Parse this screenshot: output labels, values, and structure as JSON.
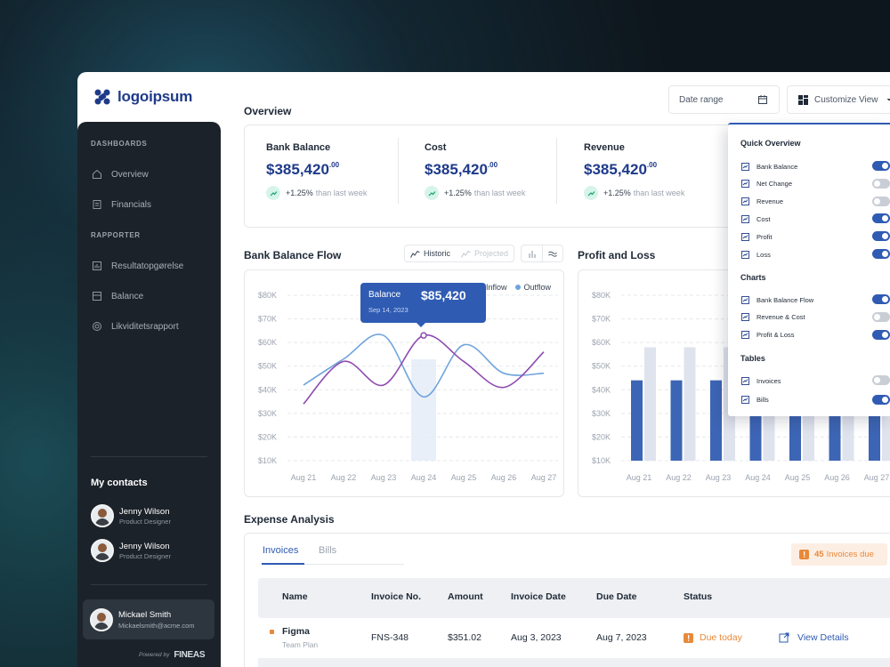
{
  "brand": {
    "name": "logoipsum",
    "powered_label": "Powered by",
    "powered_brand": "FINEAS"
  },
  "sidebar": {
    "section_dashboards": "DASHBOARDS",
    "section_reports": "RAPPORTER",
    "items": [
      {
        "label": "Overview",
        "icon": "home-icon"
      },
      {
        "label": "Financials",
        "icon": "document-icon"
      },
      {
        "label": "Resultatopgørelse",
        "icon": "bar-chart-icon"
      },
      {
        "label": "Balance",
        "icon": "scale-icon"
      },
      {
        "label": "Likviditetsrapport",
        "icon": "coins-icon"
      }
    ],
    "contacts_title": "My contacts",
    "contacts": [
      {
        "name": "Jenny Wilson",
        "role": "Product Designer"
      },
      {
        "name": "Jenny Wilson",
        "role": "Product Designer"
      }
    ],
    "user": {
      "name": "Mickael Smith",
      "email": "Mickaelsmith@acme.com"
    }
  },
  "header": {
    "date_range_label": "Date range",
    "customize_label": "Customize View"
  },
  "overview": {
    "title": "Overview",
    "kpis": [
      {
        "label": "Bank Balance",
        "value": "$385,420",
        "cents": ".00",
        "change": "+1.25%",
        "change_suffix": "than last week"
      },
      {
        "label": "Cost",
        "value": "$385,420",
        "cents": ".00",
        "change": "+1.25%",
        "change_suffix": "than last week"
      },
      {
        "label": "Revenue",
        "value": "$385,420",
        "cents": ".00",
        "change": "+1.25%",
        "change_suffix": "than last week"
      }
    ]
  },
  "bank_flow": {
    "title": "Bank Balance Flow",
    "toggle_historic": "Historic",
    "toggle_projected": "Projected",
    "legend_inflow": "Inflow",
    "legend_outflow": "Outflow",
    "tooltip": {
      "label": "Balance",
      "value": "$85,420",
      "date": "Sep 14, 2023"
    }
  },
  "profit_loss": {
    "title": "Profit and Loss"
  },
  "chart_data": [
    {
      "type": "line",
      "title": "Bank Balance Flow",
      "x": [
        "Aug 21",
        "Aug 22",
        "Aug 23",
        "Aug 24",
        "Aug 25",
        "Aug 26",
        "Aug 27"
      ],
      "y_ticks": [
        "$10K",
        "$20K",
        "$30K",
        "$40K",
        "$50K",
        "$60K",
        "$70K",
        "$80K"
      ],
      "ylim": [
        10000,
        80000
      ],
      "series": [
        {
          "name": "Inflow",
          "color": "#8f4bb0",
          "values": [
            34000,
            52000,
            42000,
            63000,
            52000,
            41000,
            56000
          ]
        },
        {
          "name": "Outflow",
          "color": "#6fa4dc",
          "values": [
            42000,
            53000,
            63000,
            37000,
            59000,
            47000,
            47000
          ]
        }
      ],
      "highlight": {
        "x": "Aug 24",
        "label": "Balance",
        "value": "$85,420",
        "date": "Sep 14, 2023"
      }
    },
    {
      "type": "bar",
      "title": "Profit and Loss",
      "categories": [
        "Aug 21",
        "Aug 22",
        "Aug 23",
        "Aug 24",
        "Aug 25",
        "Aug 26",
        "Aug 27"
      ],
      "y_ticks": [
        "$10K",
        "$20K",
        "$30K",
        "$40K",
        "$50K",
        "$60K",
        "$70K",
        "$80K"
      ],
      "ylim": [
        10000,
        80000
      ],
      "series": [
        {
          "color": "#3d65b5",
          "values": [
            44000,
            44000,
            44000,
            44000,
            44000,
            44000,
            44000
          ]
        },
        {
          "color": "#dfe3ee",
          "values": [
            58000,
            58000,
            58000,
            58000,
            58000,
            58000,
            58000
          ]
        }
      ]
    }
  ],
  "quick_overview": {
    "title": "Quick Overview",
    "items": [
      {
        "label": "Bank Balance",
        "on": true,
        "icon": "bank-icon"
      },
      {
        "label": "Net Change",
        "on": false,
        "icon": "trend-icon"
      },
      {
        "label": "Revenue",
        "on": false,
        "icon": "wave-icon"
      },
      {
        "label": "Cost",
        "on": true,
        "icon": "receipt-icon"
      },
      {
        "label": "Profit",
        "on": true,
        "icon": "trend-up-icon"
      },
      {
        "label": "Loss",
        "on": true,
        "icon": "trend-down-icon"
      }
    ],
    "charts_title": "Charts",
    "charts": [
      {
        "label": "Bank Balance Flow",
        "on": true,
        "icon": "line-chart-icon"
      },
      {
        "label": "Revenue & Cost",
        "on": false,
        "icon": "wave-icon"
      },
      {
        "label": "Profit & Loss",
        "on": true,
        "icon": "trend-up-icon"
      }
    ],
    "tables_title": "Tables",
    "tables": [
      {
        "label": "Invoices",
        "on": false,
        "icon": "invoice-icon"
      },
      {
        "label": "Bills",
        "on": true,
        "icon": "bill-icon"
      }
    ]
  },
  "expense": {
    "title": "Expense Analysis",
    "tabs": [
      "Invoices",
      "Bills"
    ],
    "due_count": "45",
    "due_label": "Invoices due",
    "columns": [
      "Name",
      "Invoice No.",
      "Amount",
      "Invoice Date",
      "Due Date",
      "Status"
    ],
    "rows": [
      {
        "name": "Figma",
        "plan": "Team Plan",
        "invoice_no": "FNS-348",
        "amount": "$351.02",
        "invoice_date": "Aug 3, 2023",
        "due_date": "Aug 7, 2023",
        "status": "Due today",
        "action": "View Details"
      }
    ]
  }
}
